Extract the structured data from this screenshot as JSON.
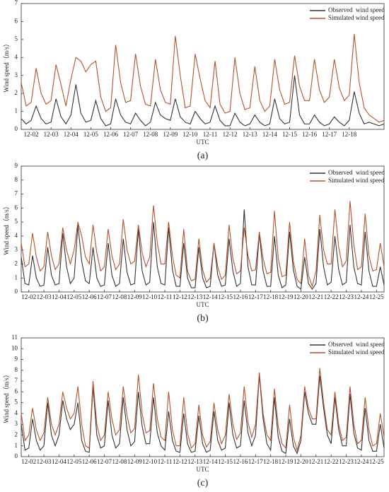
{
  "chart_data": [
    {
      "type": "line",
      "label": "(a)",
      "xlabel": "UTC",
      "ylabel": "Wind speed（m/s）",
      "ylim": [
        0,
        7
      ],
      "yticks": [
        0,
        1,
        2,
        3,
        4,
        5,
        6,
        7
      ],
      "legend": "upper right",
      "categories": [
        null,
        null,
        "12-02",
        null,
        null,
        null,
        "12-03",
        null,
        null,
        null,
        "12-04",
        null,
        null,
        null,
        "12-05",
        null,
        null,
        null,
        "12-06",
        null,
        null,
        null,
        "12-07",
        null,
        null,
        null,
        "12-08",
        null,
        null,
        null,
        "12-09",
        null,
        null,
        null,
        "12-10",
        null,
        null,
        null,
        "12-11",
        null,
        null,
        null,
        "12-12",
        null,
        null,
        null,
        "12-13",
        null,
        null,
        null,
        "12-14",
        null,
        null,
        null,
        "12-15",
        null,
        null,
        null,
        "12-16",
        null,
        null,
        null,
        "12-17",
        null,
        null,
        null,
        "12-18",
        null,
        null,
        null,
        null,
        null,
        null,
        null
      ],
      "series": [
        {
          "name": "Observed  wind speed",
          "color": "#333333",
          "values": [
            0.6,
            0.3,
            0.5,
            1.3,
            0.6,
            0.3,
            0.4,
            1.7,
            0.7,
            0.3,
            0.8,
            2.5,
            0.9,
            0.4,
            0.5,
            1.6,
            0.6,
            0.2,
            0.3,
            1.7,
            0.8,
            0.4,
            0.3,
            0.9,
            0.5,
            0.2,
            0.4,
            1.5,
            0.8,
            0.6,
            0.5,
            1.7,
            0.7,
            0.4,
            0.3,
            1.0,
            0.6,
            0.3,
            0.4,
            1.3,
            0.5,
            0.2,
            0.2,
            0.9,
            0.4,
            0.2,
            0.3,
            0.8,
            0.4,
            0.2,
            0.3,
            1.7,
            0.6,
            0.3,
            0.4,
            3.0,
            0.8,
            0.3,
            0.3,
            0.8,
            0.4,
            0.2,
            0.3,
            0.7,
            0.4,
            0.2,
            0.5,
            2.1,
            0.9,
            0.3,
            0.4,
            0.3,
            0.2,
            0.3
          ]
        },
        {
          "name": "Simulated wind speed",
          "color": "#b5532a",
          "values": [
            2.6,
            1.3,
            1.5,
            3.4,
            2.0,
            1.4,
            1.6,
            3.6,
            2.5,
            1.3,
            2.8,
            4.0,
            3.8,
            3.2,
            3.6,
            3.8,
            1.8,
            1.0,
            1.2,
            4.7,
            2.6,
            1.5,
            1.6,
            4.2,
            2.4,
            1.4,
            1.3,
            3.9,
            2.2,
            1.5,
            1.4,
            5.2,
            3.0,
            1.2,
            1.3,
            4.2,
            2.8,
            1.6,
            1.2,
            3.8,
            1.4,
            0.9,
            1.0,
            4.0,
            2.0,
            1.1,
            1.2,
            3.5,
            1.6,
            1.0,
            1.3,
            3.9,
            2.2,
            1.4,
            1.5,
            4.1,
            2.4,
            1.6,
            1.6,
            3.9,
            2.2,
            1.5,
            1.8,
            3.9,
            2.3,
            1.6,
            1.9,
            5.3,
            2.6,
            1.2,
            0.8,
            0.6,
            0.4,
            0.5
          ]
        }
      ]
    },
    {
      "type": "line",
      "label": "(b)",
      "xlabel": "UTC",
      "ylabel": "Wind speed（m/s）",
      "ylim": [
        0,
        9
      ],
      "yticks": [
        0,
        1,
        2,
        3,
        4,
        5,
        6,
        7,
        8,
        9
      ],
      "legend": "upper right",
      "categories": [
        null,
        null,
        "12-02",
        null,
        null,
        null,
        "12-03",
        null,
        null,
        null,
        "12-04",
        null,
        null,
        null,
        "12-05",
        null,
        null,
        null,
        "12-06",
        null,
        null,
        null,
        "12-07",
        null,
        null,
        null,
        "12-08",
        null,
        null,
        null,
        "12-09",
        null,
        null,
        null,
        "12-10",
        null,
        null,
        null,
        "12-11",
        null,
        null,
        null,
        "12-12",
        null,
        null,
        null,
        "12-13",
        null,
        null,
        null,
        "12-14",
        null,
        null,
        null,
        "12-15",
        null,
        null,
        null,
        "12-16",
        null,
        null,
        null,
        "12-17",
        null,
        null,
        null,
        "12-18",
        null,
        null,
        null,
        "12-19",
        null,
        null,
        null,
        "12-20",
        null,
        null,
        null,
        "12-21",
        null,
        null,
        null,
        "12-22",
        null,
        null,
        null,
        "12-23",
        null,
        null,
        null,
        "12-24",
        null,
        null,
        null,
        "12-25",
        null,
        null
      ],
      "series": [
        {
          "name": "Observed  wind speed",
          "color": "#333333",
          "values": [
            2.5,
            0.6,
            0.5,
            2.6,
            1.0,
            0.4,
            0.5,
            3.2,
            1.2,
            0.5,
            0.6,
            4.2,
            1.8,
            0.6,
            1.0,
            4.8,
            2.2,
            0.8,
            0.6,
            3.2,
            1.0,
            0.4,
            0.5,
            3.5,
            1.2,
            0.4,
            0.6,
            3.8,
            1.4,
            0.5,
            0.6,
            4.5,
            1.5,
            0.5,
            0.7,
            5.0,
            1.8,
            0.6,
            0.5,
            4.6,
            1.6,
            0.4,
            0.4,
            3.5,
            1.0,
            0.3,
            0.3,
            3.2,
            1.0,
            0.3,
            0.4,
            3.5,
            1.2,
            0.4,
            0.5,
            3.8,
            1.5,
            0.4,
            0.6,
            5.9,
            1.8,
            0.5,
            0.5,
            4.2,
            1.5,
            0.4,
            0.4,
            4.0,
            1.2,
            0.3,
            0.5,
            4.3,
            1.6,
            0.4,
            0.2,
            2.5,
            0.6,
            0.2,
            0.6,
            4.5,
            1.8,
            0.5,
            0.7,
            4.0,
            1.6,
            0.5,
            0.7,
            4.8,
            1.8,
            0.6,
            0.5,
            4.3,
            1.5,
            0.4,
            0.4,
            1.8,
            0.5
          ]
        },
        {
          "name": "Simulated wind speed",
          "color": "#b5532a",
          "values": [
            3.5,
            1.8,
            2.0,
            4.2,
            2.5,
            1.5,
            1.8,
            4.3,
            2.6,
            1.6,
            2.0,
            4.6,
            3.0,
            2.0,
            3.0,
            5.0,
            4.0,
            2.5,
            2.0,
            4.8,
            2.8,
            1.5,
            1.8,
            4.5,
            2.6,
            1.6,
            2.0,
            5.2,
            3.0,
            2.0,
            2.2,
            4.8,
            2.8,
            1.8,
            2.5,
            6.2,
            3.5,
            2.0,
            2.0,
            5.0,
            2.6,
            1.2,
            1.0,
            4.5,
            1.5,
            0.8,
            0.9,
            3.8,
            1.6,
            0.7,
            1.0,
            3.5,
            1.8,
            0.9,
            1.2,
            4.8,
            2.4,
            1.3,
            1.5,
            4.6,
            2.6,
            1.5,
            1.6,
            4.3,
            2.4,
            1.3,
            1.4,
            5.8,
            2.4,
            1.1,
            1.2,
            5.0,
            2.2,
            0.9,
            0.6,
            3.8,
            1.2,
            0.4,
            1.5,
            5.5,
            3.0,
            2.0,
            2.0,
            5.9,
            3.2,
            1.8,
            2.2,
            6.5,
            3.4,
            1.6,
            1.8,
            5.6,
            2.6,
            1.5,
            1.6,
            3.5,
            1.8
          ]
        }
      ]
    },
    {
      "type": "line",
      "label": "(c)",
      "xlabel": "UTC",
      "ylabel": "Wind speed（m/s）",
      "ylim": [
        0,
        11
      ],
      "yticks": [
        0,
        1,
        2,
        3,
        4,
        5,
        6,
        7,
        8,
        9,
        10,
        11
      ],
      "legend": "upper right",
      "categories": [
        null,
        null,
        "12-02",
        null,
        null,
        null,
        "12-03",
        null,
        null,
        null,
        "12-04",
        null,
        null,
        null,
        "12-05",
        null,
        null,
        null,
        "12-06",
        null,
        null,
        null,
        "12-07",
        null,
        null,
        null,
        "12-08",
        null,
        null,
        null,
        "12-09",
        null,
        null,
        null,
        "12-10",
        null,
        null,
        null,
        "12-11",
        null,
        null,
        null,
        "12-12",
        null,
        null,
        null,
        "12-13",
        null,
        null,
        null,
        "12-14",
        null,
        null,
        null,
        "12-15",
        null,
        null,
        null,
        "12-16",
        null,
        null,
        null,
        "12-17",
        null,
        null,
        null,
        "12-18",
        null,
        null,
        null,
        "12-19",
        null,
        null,
        null,
        "12-20",
        null,
        null,
        null,
        "12-21",
        null,
        null,
        null,
        "12-22",
        null,
        null,
        null,
        "12-23",
        null,
        null,
        null,
        "12-24",
        null,
        null,
        null,
        "12-25",
        null,
        null
      ],
      "series": [
        {
          "name": "Observed  wind speed",
          "color": "#333333",
          "values": [
            3.0,
            0.6,
            0.8,
            3.5,
            1.5,
            0.6,
            1.0,
            5.0,
            2.0,
            1.0,
            2.0,
            5.2,
            3.5,
            2.5,
            3.0,
            5.0,
            1.5,
            0.5,
            0.4,
            6.5,
            2.0,
            0.8,
            1.0,
            5.2,
            2.0,
            0.8,
            1.2,
            5.5,
            2.5,
            1.0,
            1.4,
            6.0,
            2.8,
            1.2,
            1.2,
            5.5,
            2.2,
            1.0,
            0.6,
            4.2,
            1.5,
            0.5,
            0.4,
            4.0,
            1.2,
            0.4,
            0.5,
            3.8,
            1.2,
            0.4,
            0.6,
            4.2,
            1.5,
            0.6,
            0.8,
            5.0,
            2.0,
            0.8,
            1.0,
            5.2,
            2.2,
            1.0,
            2.0,
            7.6,
            3.5,
            1.2,
            0.6,
            5.5,
            1.8,
            0.5,
            0.3,
            3.5,
            1.0,
            0.3,
            1.5,
            6.0,
            4.0,
            3.0,
            3.0,
            7.5,
            4.5,
            2.0,
            1.2,
            5.5,
            2.5,
            1.0,
            1.0,
            5.8,
            2.2,
            0.8,
            0.6,
            4.5,
            1.5,
            0.5,
            0.5,
            3.0,
            0.8
          ]
        },
        {
          "name": "Simulated wind speed",
          "color": "#b5532a",
          "values": [
            4.0,
            1.5,
            2.0,
            4.5,
            2.5,
            1.5,
            2.2,
            5.5,
            3.0,
            2.0,
            3.0,
            6.0,
            4.5,
            3.5,
            4.0,
            6.5,
            3.0,
            1.0,
            0.8,
            7.0,
            3.0,
            1.5,
            2.0,
            6.0,
            3.5,
            2.0,
            2.5,
            6.5,
            3.8,
            2.2,
            2.6,
            7.6,
            4.0,
            2.2,
            2.4,
            6.8,
            3.5,
            1.8,
            1.5,
            6.0,
            2.5,
            1.0,
            1.0,
            5.5,
            2.2,
            0.8,
            1.2,
            4.8,
            2.0,
            0.9,
            1.4,
            5.0,
            2.5,
            1.2,
            2.0,
            5.8,
            3.0,
            1.6,
            2.2,
            6.5,
            3.2,
            1.8,
            3.0,
            7.8,
            4.0,
            2.0,
            1.5,
            6.3,
            2.8,
            1.2,
            0.8,
            4.8,
            1.8,
            0.6,
            2.0,
            6.5,
            4.5,
            3.5,
            3.5,
            8.2,
            5.0,
            2.5,
            2.0,
            6.0,
            3.0,
            1.5,
            1.8,
            6.5,
            3.0,
            1.2,
            1.5,
            5.5,
            2.5,
            1.0,
            1.2,
            4.0,
            1.8
          ]
        }
      ]
    }
  ]
}
